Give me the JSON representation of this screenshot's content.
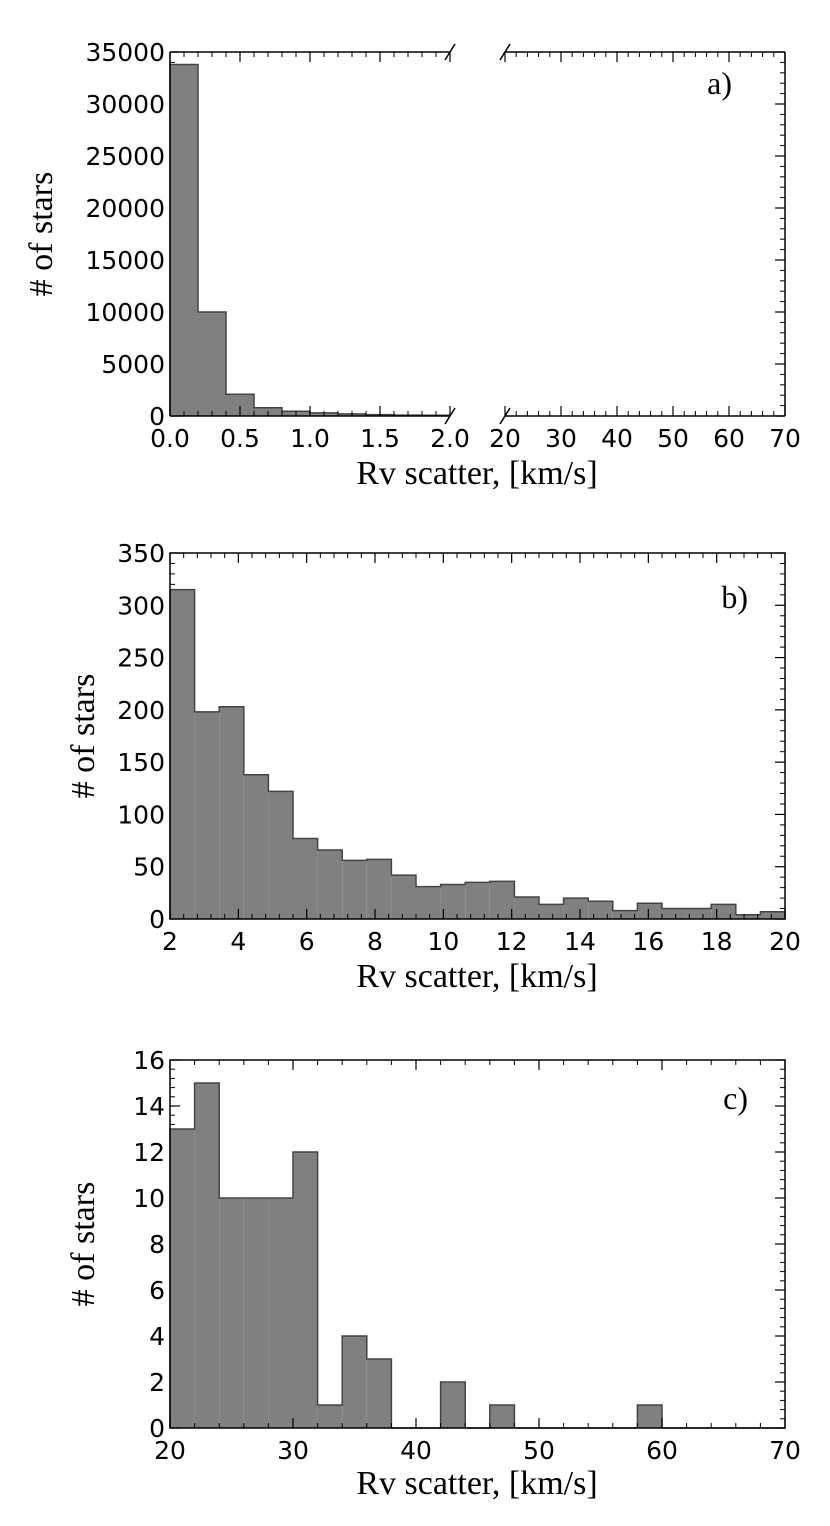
{
  "figure": {
    "colors": {
      "bar_fill": "#808080",
      "bar_stroke": "#444444",
      "axis": "#000000"
    }
  },
  "chart_data": [
    {
      "type": "bar",
      "panel_label": "a)",
      "xlabel": "Rv scatter, [km/s]",
      "ylabel": "# of stars",
      "broken_x_axis": true,
      "ylim": [
        0,
        35000
      ],
      "y_ticks": [
        "0",
        "5000",
        "10000",
        "15000",
        "20000",
        "25000",
        "30000",
        "35000"
      ],
      "segments": [
        {
          "xlim": [
            0.0,
            2.0
          ],
          "x_ticks": [
            "0.0",
            "0.5",
            "1.0",
            "1.5",
            "2.0"
          ],
          "bin_width": 0.2,
          "bin_edges": [
            0.0,
            0.2,
            0.4,
            0.6,
            0.8,
            1.0,
            1.2,
            1.4,
            1.6,
            1.8,
            2.0
          ],
          "values": [
            33800,
            10000,
            2100,
            800,
            450,
            300,
            200,
            130,
            90,
            70
          ]
        },
        {
          "xlim": [
            20,
            70
          ],
          "x_ticks": [
            "20",
            "30",
            "40",
            "50",
            "60",
            "70"
          ],
          "values": []
        }
      ],
      "grid": false
    },
    {
      "type": "bar",
      "panel_label": "b)",
      "xlabel": "Rv scatter, [km/s]",
      "ylabel": "# of stars",
      "xlim": [
        2,
        20
      ],
      "ylim": [
        0,
        350
      ],
      "x_ticks": [
        "2",
        "4",
        "6",
        "8",
        "10",
        "12",
        "14",
        "16",
        "18",
        "20"
      ],
      "y_ticks": [
        "0",
        "50",
        "100",
        "150",
        "200",
        "250",
        "300",
        "350"
      ],
      "bin_width": 0.72,
      "values": [
        315,
        198,
        203,
        138,
        122,
        77,
        66,
        56,
        57,
        42,
        31,
        33,
        35,
        36,
        21,
        14,
        20,
        17,
        8,
        15,
        10,
        10,
        14,
        4,
        7
      ],
      "grid": false
    },
    {
      "type": "bar",
      "panel_label": "c)",
      "xlabel": "Rv scatter, [km/s]",
      "ylabel": "# of stars",
      "xlim": [
        20,
        70
      ],
      "ylim": [
        0,
        16
      ],
      "x_ticks": [
        "20",
        "30",
        "40",
        "50",
        "60",
        "70"
      ],
      "y_ticks": [
        "0",
        "2",
        "4",
        "6",
        "8",
        "10",
        "12",
        "14",
        "16"
      ],
      "bin_width": 2,
      "values": [
        13,
        15,
        10,
        10,
        10,
        12,
        1,
        4,
        3,
        0,
        0,
        2,
        0,
        1,
        0,
        0,
        0,
        0,
        0,
        1,
        0,
        0,
        0,
        0,
        0
      ],
      "grid": false
    }
  ]
}
